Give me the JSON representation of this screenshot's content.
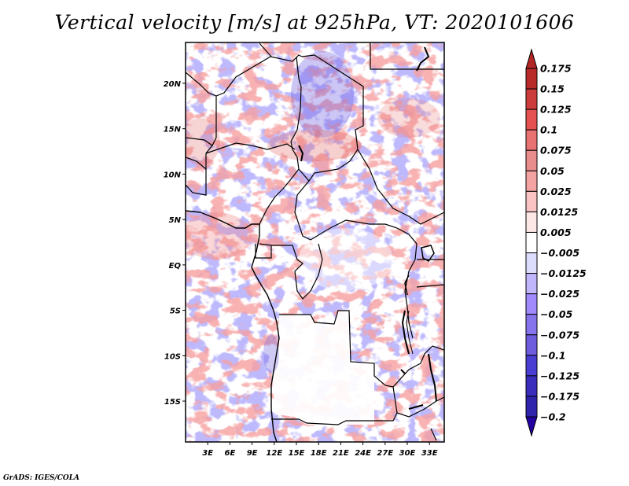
{
  "title": "Vertical velocity [m/s] at 925hPa, VT: 2020101606",
  "credit": "GrADS: IGES/COLA",
  "chart_data": {
    "type": "heatmap",
    "title": "Vertical velocity [m/s] at 925hPa, VT: 2020101606",
    "variable": "Vertical velocity",
    "units": "m/s",
    "level": "925hPa",
    "valid_time": "2020101606",
    "xlabel": "",
    "ylabel": "",
    "x_range_lon": [
      0,
      35
    ],
    "y_range_lat": [
      -19.5,
      24.5
    ],
    "x_ticks": [
      {
        "value": 3,
        "label": "3E"
      },
      {
        "value": 6,
        "label": "6E"
      },
      {
        "value": 9,
        "label": "9E"
      },
      {
        "value": 12,
        "label": "12E"
      },
      {
        "value": 15,
        "label": "15E"
      },
      {
        "value": 18,
        "label": "18E"
      },
      {
        "value": 21,
        "label": "21E"
      },
      {
        "value": 24,
        "label": "24E"
      },
      {
        "value": 27,
        "label": "27E"
      },
      {
        "value": 30,
        "label": "30E"
      },
      {
        "value": 33,
        "label": "33E"
      }
    ],
    "y_ticks": [
      {
        "value": 20,
        "label": "20N"
      },
      {
        "value": 15,
        "label": "15N"
      },
      {
        "value": 10,
        "label": "10N"
      },
      {
        "value": 5,
        "label": "5N"
      },
      {
        "value": 0,
        "label": "EQ"
      },
      {
        "value": -5,
        "label": "5S"
      },
      {
        "value": -10,
        "label": "10S"
      },
      {
        "value": -15,
        "label": "15S"
      }
    ],
    "colorbar": {
      "orientation": "vertical",
      "placement": "right",
      "levels": [
        {
          "value": 0.175,
          "label": "0.175"
        },
        {
          "value": 0.15,
          "label": "0.15"
        },
        {
          "value": 0.125,
          "label": "0.125"
        },
        {
          "value": 0.1,
          "label": "0.1"
        },
        {
          "value": 0.075,
          "label": "0.075"
        },
        {
          "value": 0.05,
          "label": "0.05"
        },
        {
          "value": 0.025,
          "label": "0.025"
        },
        {
          "value": 0.0125,
          "label": "0.0125"
        },
        {
          "value": 0.005,
          "label": "0.005"
        },
        {
          "value": -0.005,
          "label": "−0.005"
        },
        {
          "value": -0.0125,
          "label": "−0.0125"
        },
        {
          "value": -0.025,
          "label": "−0.025"
        },
        {
          "value": -0.05,
          "label": "−0.05"
        },
        {
          "value": -0.075,
          "label": "−0.075"
        },
        {
          "value": -0.1,
          "label": "−0.1"
        },
        {
          "value": -0.125,
          "label": "−0.125"
        },
        {
          "value": -0.175,
          "label": "−0.175"
        },
        {
          "value": -0.2,
          "label": "−0.2"
        }
      ],
      "colors_top_to_bottom": [
        "#b22626",
        "#b82a2a",
        "#cc3c3c",
        "#e55050",
        "#e87272",
        "#e88c8c",
        "#f4a3a3",
        "#fac4c4",
        "#fde6e6",
        "#ffffff",
        "#dcdcfc",
        "#c0b6fc",
        "#a08afc",
        "#8674ec",
        "#6e5ede",
        "#4a3ed2",
        "#3a2dbc",
        "#3024ac",
        "#2300a0"
      ],
      "extend": "both"
    },
    "field_summary": "Fine-scale alternating updraft (red) and downdraft (blue) streaks, mostly within ±0.05 m/s; strongest downdrafts (to about −0.1) over northern Chad/Niger; stronger updraft streaks over Sahel, Sudan and along the Gulf of Guinea coast; near-zero (white) over Angola and the Congo interior.",
    "overlays": [
      "country boundaries",
      "coastlines",
      "lake outlines"
    ]
  }
}
